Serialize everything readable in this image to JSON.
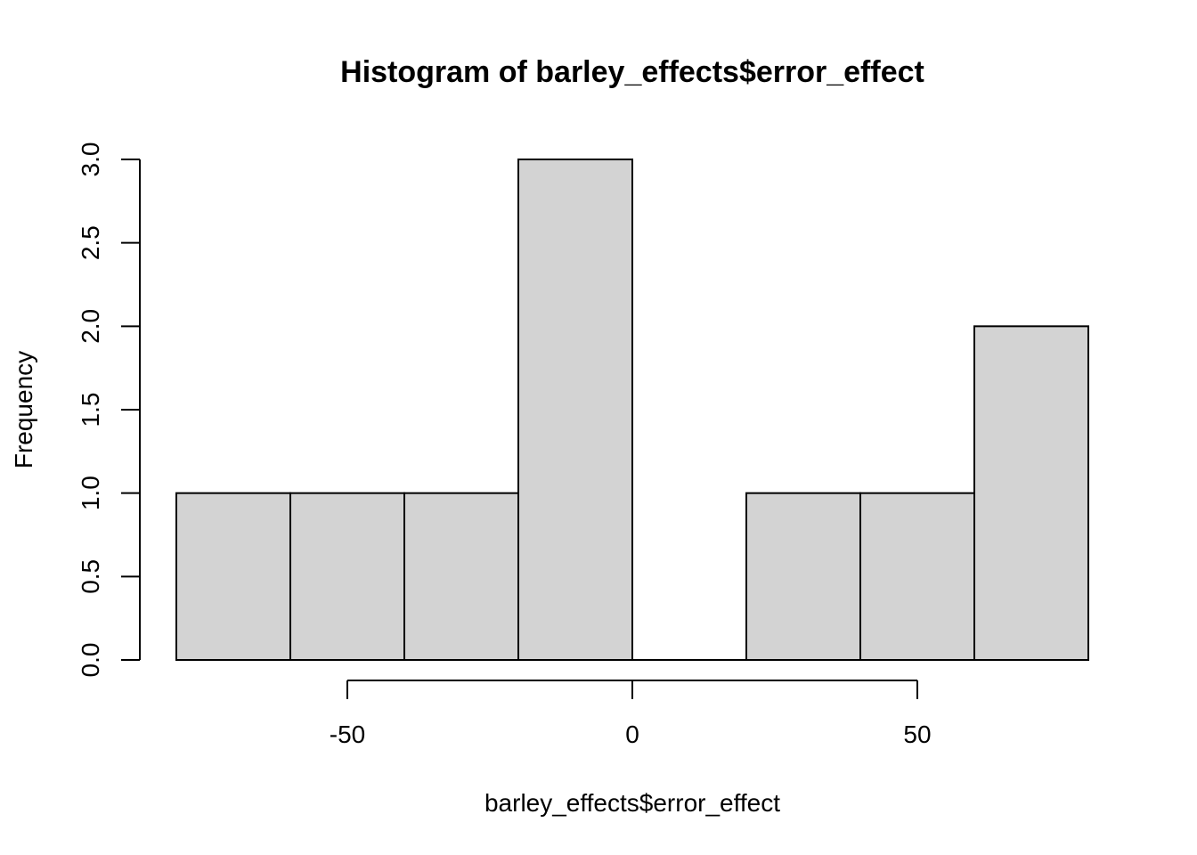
{
  "chart_data": {
    "type": "bar",
    "title": "Histogram of barley_effects$error_effect",
    "xlabel": "barley_effects$error_effect",
    "ylabel": "Frequency",
    "bins": [
      {
        "start": -80,
        "end": -60,
        "count": 1
      },
      {
        "start": -60,
        "end": -40,
        "count": 1
      },
      {
        "start": -40,
        "end": -20,
        "count": 1
      },
      {
        "start": -20,
        "end": 0,
        "count": 3
      },
      {
        "start": 0,
        "end": 20,
        "count": 0
      },
      {
        "start": 20,
        "end": 40,
        "count": 1
      },
      {
        "start": 40,
        "end": 60,
        "count": 1
      },
      {
        "start": 60,
        "end": 80,
        "count": 2
      }
    ],
    "xlim": [
      -80,
      80
    ],
    "ylim": [
      0,
      3
    ],
    "x_ticks": [
      -50,
      0,
      50
    ],
    "x_tick_labels": [
      "-50",
      "0",
      "50"
    ],
    "y_ticks": [
      0,
      0.5,
      1,
      1.5,
      2,
      2.5,
      3
    ],
    "y_tick_labels": [
      "0.0",
      "0.5",
      "1.0",
      "1.5",
      "2.0",
      "2.5",
      "3.0"
    ],
    "grid": false,
    "colors": {
      "bar_fill": "#d3d3d3",
      "bar_stroke": "#000000"
    }
  }
}
